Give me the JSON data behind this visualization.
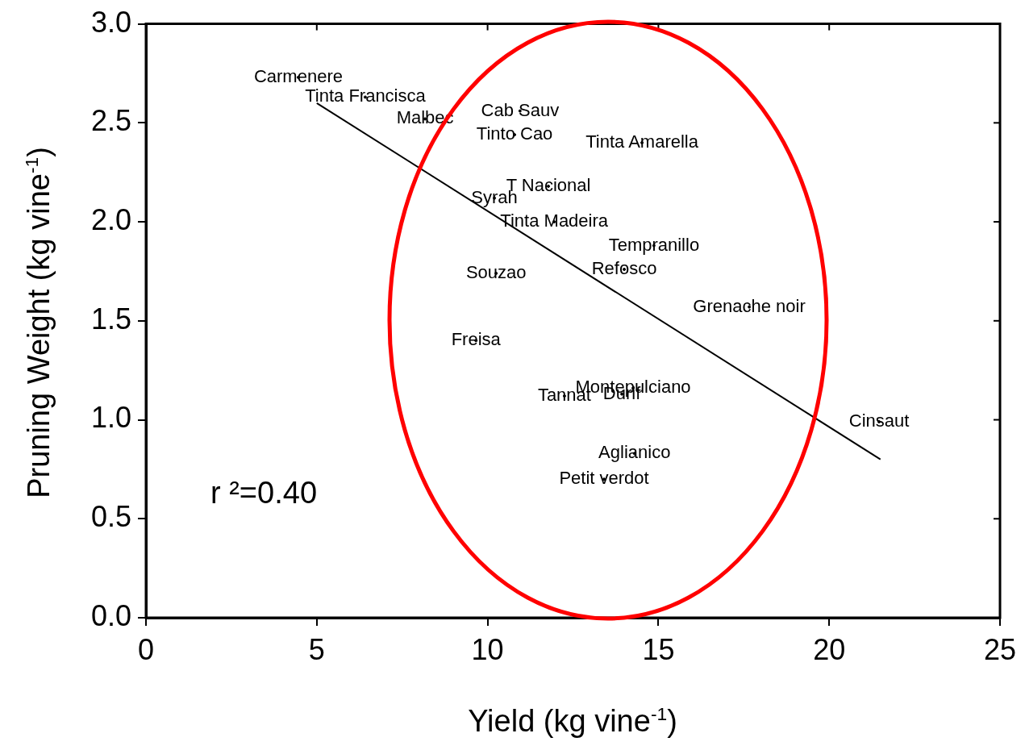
{
  "chart_data": {
    "type": "scatter",
    "xlabel": "Yield (kg  vine$^{-1}$)",
    "ylabel": "Pruning Weight (kg  vine$^{-1}$)",
    "xlim": [
      0,
      25
    ],
    "xticks": [
      0,
      5,
      10,
      15,
      20,
      25
    ],
    "ylim": [
      0,
      3
    ],
    "yticks": [
      {
        "value": 0,
        "label": "0.0"
      },
      {
        "value": 0.5,
        "label": "0.5"
      },
      {
        "value": 1,
        "label": "1.0"
      },
      {
        "value": 1.5,
        "label": "1.5"
      },
      {
        "value": 2,
        "label": "2.0"
      },
      {
        "value": 2.5,
        "label": "2.5"
      },
      {
        "value": 3,
        "label": "3.0"
      }
    ],
    "grid": false,
    "legend": false,
    "series": [
      {
        "color": "#000000",
        "x": [
          4.46,
          6.42,
          8.17,
          10.95,
          10.79,
          14.52,
          11.78,
          10.2,
          11.95,
          14.87,
          14.0,
          10.25,
          17.66,
          9.66,
          14.26,
          12.25,
          13.93,
          21.46,
          14.3,
          13.41
        ],
        "values": [
          2.73,
          2.63,
          2.52,
          2.56,
          2.44,
          2.4,
          2.18,
          2.12,
          2.0,
          1.88,
          1.76,
          1.74,
          1.57,
          1.4,
          1.16,
          1.12,
          1.13,
          0.99,
          0.83,
          0.7
        ],
        "value_labels": [
          "Carmenere",
          "Tinta Francisca",
          "Malbec",
          "Cab Sauv",
          "Tinto Cao",
          "Tinta Amarella",
          "T Nacional",
          "Syrah",
          "Tinta Madeira",
          "Tempranillo",
          "Refosco",
          "Souzao",
          "Grenache noir",
          "Freisa",
          "Montepulciano",
          "Tannat",
          "Durif",
          "Cinsaut",
          "Aglianico",
          "Petit verdot"
        ]
      },
      {
        "type": "line",
        "color": "#000000",
        "x": [
          5.0,
          21.5
        ],
        "values": [
          2.6,
          0.8
        ]
      }
    ],
    "annotations": [
      "r ²=0.40"
    ]
  }
}
